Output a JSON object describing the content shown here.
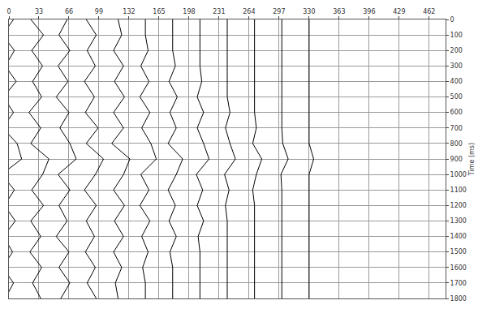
{
  "chart_data": {
    "type": "wiggle",
    "y_label": "Time (ms)",
    "color": "#000000",
    "grid": true,
    "times": [
      0,
      100,
      200,
      300,
      400,
      500,
      600,
      700,
      800,
      900,
      1000,
      1100,
      1200,
      1300,
      1400,
      1500,
      1600,
      1700,
      1800
    ],
    "traces": [
      {
        "x": 0,
        "values": [
          5,
          -7,
          6,
          -4,
          8,
          -6,
          5,
          -7,
          9,
          14,
          -8,
          6,
          -5,
          7,
          -6,
          4,
          -7,
          5,
          -4
        ]
      },
      {
        "x": 30,
        "values": [
          -6,
          8,
          -5,
          7,
          -4,
          6,
          -8,
          5,
          -6,
          14,
          7,
          -5,
          8,
          -6,
          5,
          -7,
          6,
          -4,
          5
        ]
      },
      {
        "x": 60,
        "values": [
          4,
          -5,
          7,
          -6,
          5,
          -8,
          6,
          -4,
          7,
          14,
          -6,
          7,
          -5,
          4,
          -8,
          6,
          -5,
          7,
          -3
        ]
      },
      {
        "x": 90,
        "values": [
          -5,
          6,
          -4,
          5,
          -7,
          4,
          -6,
          8,
          -5,
          14,
          5,
          -7,
          6,
          -5,
          4,
          -6,
          5,
          -4,
          6
        ]
      },
      {
        "x": 120,
        "values": [
          0,
          4,
          -5,
          6,
          -4,
          7,
          -5,
          6,
          -7,
          13,
          6,
          -5,
          7,
          -4,
          6,
          -5,
          4,
          -3,
          0
        ]
      },
      {
        "x": 150,
        "values": [
          0,
          0,
          3,
          -5,
          4,
          -6,
          5,
          -4,
          6,
          12,
          -5,
          4,
          -6,
          5,
          -4,
          3,
          -3,
          0,
          0
        ]
      },
      {
        "x": 180,
        "values": [
          0,
          0,
          0,
          3,
          -4,
          5,
          -3,
          4,
          -5,
          11,
          4,
          -5,
          3,
          -4,
          4,
          -3,
          0,
          0,
          0
        ]
      },
      {
        "x": 210,
        "values": [
          0,
          0,
          0,
          0,
          2,
          -3,
          4,
          -3,
          4,
          10,
          -4,
          3,
          -3,
          4,
          -2,
          0,
          0,
          0,
          0
        ]
      },
      {
        "x": 240,
        "values": [
          0,
          0,
          0,
          0,
          0,
          0,
          3,
          -2,
          3,
          9,
          -3,
          2,
          -2,
          0,
          0,
          0,
          0,
          0,
          0
        ]
      },
      {
        "x": 270,
        "values": [
          0,
          0,
          0,
          0,
          0,
          0,
          0,
          2,
          -2,
          8,
          2,
          -2,
          0,
          0,
          0,
          0,
          0,
          0,
          0
        ]
      },
      {
        "x": 300,
        "values": [
          0,
          0,
          0,
          0,
          0,
          0,
          0,
          0,
          1,
          7,
          -1,
          0,
          0,
          0,
          0,
          0,
          0,
          0,
          0
        ]
      },
      {
        "x": 330,
        "values": [
          0,
          0,
          0,
          0,
          0,
          0,
          0,
          0,
          0,
          5,
          0,
          0,
          0,
          0,
          0,
          0,
          0,
          0,
          0
        ]
      }
    ],
    "xlim": [
      0,
      480
    ],
    "xticks": [
      0,
      33,
      66,
      99,
      132,
      165,
      198,
      231,
      264,
      297,
      330,
      363,
      396,
      429,
      462
    ],
    "ylim": [
      0,
      1800
    ],
    "yticks": [
      0,
      100,
      200,
      300,
      400,
      500,
      600,
      700,
      800,
      900,
      1000,
      1100,
      1200,
      1300,
      1400,
      1500,
      1600,
      1700,
      1800
    ]
  }
}
